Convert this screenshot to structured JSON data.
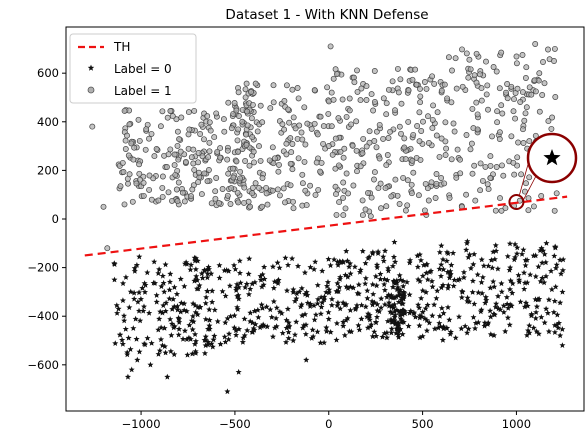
{
  "chart_data": {
    "type": "scatter",
    "title": "Dataset 1 - With KNN Defense",
    "xlabel": "",
    "ylabel": "",
    "xlim": [
      -1400,
      1360
    ],
    "ylim": [
      -790,
      790
    ],
    "xticks": [
      -1000,
      -500,
      0,
      500,
      1000
    ],
    "yticks": [
      -600,
      -400,
      -200,
      0,
      200,
      400,
      600
    ],
    "xtick_labels": [
      "−1000",
      "−500",
      "0",
      "500",
      "1000"
    ],
    "ytick_labels": [
      "−600",
      "−400",
      "−200",
      "0",
      "200",
      "400",
      "600"
    ],
    "grid": false,
    "legend_position": "top-left",
    "threshold_line": {
      "name": "TH",
      "x": [
        -1300,
        1270
      ],
      "y": [
        -150,
        92
      ],
      "color": "#ee1111",
      "style": "dashed"
    },
    "series": [
      {
        "name": "Label = 0",
        "marker": "star",
        "color": "#000000",
        "clusters": [
          {
            "x_range": [
              -1150,
              -550
            ],
            "y_range": [
              -560,
              -150
            ],
            "count": 190
          },
          {
            "x_range": [
              -550,
              50
            ],
            "y_range": [
              -520,
              -160
            ],
            "count": 170
          },
          {
            "x_range": [
              50,
              700
            ],
            "y_range": [
              -500,
              -130
            ],
            "count": 220
          },
          {
            "x_range": [
              700,
              1250
            ],
            "y_range": [
              -480,
              -90
            ],
            "count": 170
          },
          {
            "x_range": [
              330,
              400
            ],
            "y_range": [
              -480,
              -250
            ],
            "count": 60
          }
        ],
        "points": [
          [
            -1070,
            -650
          ],
          [
            -1050,
            -620
          ],
          [
            -860,
            -650
          ],
          [
            -540,
            -710
          ],
          [
            -1120,
            -370
          ],
          [
            1245,
            -520
          ],
          [
            -950,
            -600
          ],
          [
            -1020,
            -580
          ],
          [
            600,
            -110
          ],
          [
            350,
            -95
          ],
          [
            -480,
            -630
          ],
          [
            -120,
            -580
          ]
        ]
      },
      {
        "name": "Label = 1",
        "marker": "circle",
        "color": "#888888",
        "clusters": [
          {
            "x_range": [
              -1120,
              -600
            ],
            "y_range": [
              60,
              450
            ],
            "count": 160
          },
          {
            "x_range": [
              -600,
              0
            ],
            "y_range": [
              40,
              560
            ],
            "count": 180
          },
          {
            "x_range": [
              0,
              600
            ],
            "y_range": [
              10,
              620
            ],
            "count": 200
          },
          {
            "x_range": [
              600,
              1220
            ],
            "y_range": [
              30,
              700
            ],
            "count": 180
          },
          {
            "x_range": [
              -520,
              -400
            ],
            "y_range": [
              120,
              480
            ],
            "count": 50
          }
        ],
        "points": [
          [
            -1180,
            -120
          ],
          [
            10,
            710
          ],
          [
            1100,
            720
          ],
          [
            -1260,
            380
          ],
          [
            -1200,
            50
          ],
          [
            1200,
            650
          ]
        ]
      }
    ],
    "annotation": {
      "type": "zoom-circle",
      "point": [
        1000,
        70
      ],
      "label_marker": "star",
      "color": "#8b0000"
    }
  }
}
